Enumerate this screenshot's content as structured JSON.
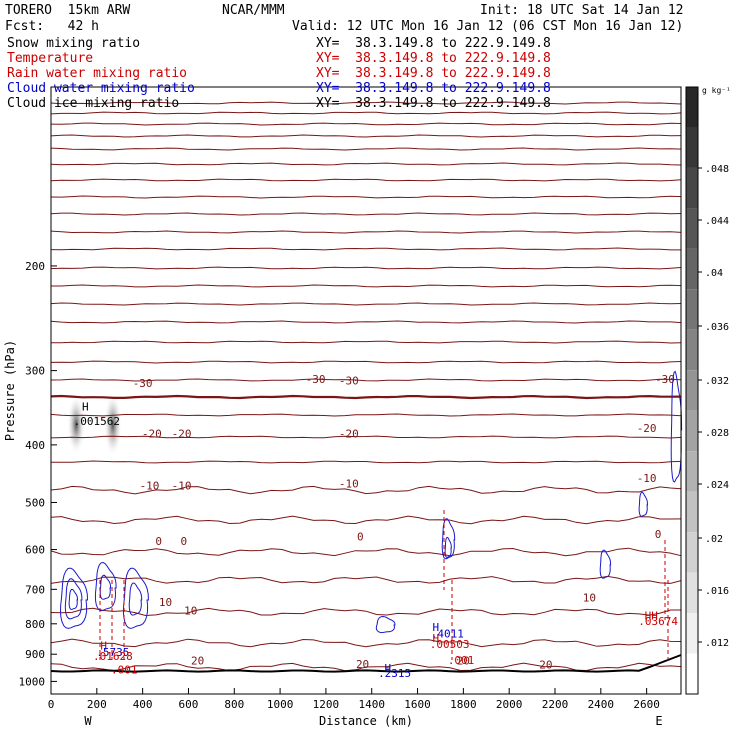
{
  "header": {
    "model": "TORERO  15km ARW",
    "org": "NCAR/MMM",
    "init": "Init: 18 UTC Sat 14 Jan 12",
    "fcst": "Fcst:   42 h",
    "valid": "Valid: 12 UTC Mon 16 Jan 12 (06 CST Mon 16 Jan 12)"
  },
  "legend": [
    {
      "label": "Snow mixing ratio",
      "xy": "XY=  38.3.149.8 to 222.9.149.8",
      "color": "#000000"
    },
    {
      "label": "Temperature",
      "xy": "XY=  38.3.149.8 to 222.9.149.8",
      "color": "#cc0000"
    },
    {
      "label": "Rain water mixing ratio",
      "xy": "XY=  38.3.149.8 to 222.9.149.8",
      "color": "#cc0000"
    },
    {
      "label": "Cloud water mixing ratio",
      "xy": "XY=  38.3.149.8 to 222.9.149.8",
      "color": "#0000cc"
    },
    {
      "label": "Cloud ice mixing ratio",
      "xy": "XY=  38.3.149.8 to 222.9.149.8",
      "color": "#000000"
    }
  ],
  "colorbar": {
    "unit": "g kg⁻¹",
    "ticks": [
      ".048",
      ".044",
      ".04",
      ".036",
      ".032",
      ".028",
      ".024",
      ".02",
      ".016",
      ".012"
    ]
  },
  "chart_data": {
    "type": "cross-section contour",
    "xlabel": "Distance (km)",
    "ylabel": "Pressure (hPa)",
    "x_ticks": [
      0,
      200,
      400,
      600,
      800,
      1000,
      1200,
      1400,
      1600,
      1800,
      2000,
      2200,
      2400,
      2600
    ],
    "y_ticks": [
      200,
      300,
      400,
      500,
      600,
      700,
      800,
      900,
      1000
    ],
    "xlim": [
      0,
      2750
    ],
    "ylim": [
      1050,
      100
    ],
    "y_scale": "log",
    "end_labels": {
      "left": "W",
      "right": "E"
    },
    "temperature_contours": [
      {
        "level": "-30",
        "labels": [
          {
            "x": 400,
            "p": 315
          },
          {
            "x": 1155,
            "p": 310
          },
          {
            "x": 1300,
            "p": 312
          },
          {
            "x": 2680,
            "p": 310
          }
        ]
      },
      {
        "level": "-20",
        "labels": [
          {
            "x": 440,
            "p": 383
          },
          {
            "x": 570,
            "p": 383
          },
          {
            "x": 1300,
            "p": 383
          },
          {
            "x": 2600,
            "p": 375
          }
        ]
      },
      {
        "level": "-10",
        "labels": [
          {
            "x": 430,
            "p": 468
          },
          {
            "x": 570,
            "p": 468
          },
          {
            "x": 1300,
            "p": 465
          },
          {
            "x": 2600,
            "p": 455
          }
        ]
      },
      {
        "level": "0",
        "labels": [
          {
            "x": 470,
            "p": 580
          },
          {
            "x": 580,
            "p": 580
          },
          {
            "x": 1350,
            "p": 570
          },
          {
            "x": 2650,
            "p": 565
          }
        ]
      },
      {
        "level": "10",
        "labels": [
          {
            "x": 500,
            "p": 735
          },
          {
            "x": 610,
            "p": 760
          },
          {
            "x": 2350,
            "p": 722
          }
        ]
      },
      {
        "level": "20",
        "labels": [
          {
            "x": 640,
            "p": 922
          },
          {
            "x": 1360,
            "p": 935
          },
          {
            "x": 1800,
            "p": 922
          },
          {
            "x": 2160,
            "p": 937
          }
        ]
      }
    ],
    "annotations": [
      {
        "text": "H",
        "x": 150,
        "p": 345,
        "color": "#000000"
      },
      {
        "text": ".001562",
        "x": 200,
        "p": 365,
        "color": "#000000"
      },
      {
        "text": "H",
        "x": 230,
        "p": 870,
        "color": "#cc0000"
      },
      {
        "text": ".5735",
        "x": 270,
        "p": 892,
        "color": "#0000cc"
      },
      {
        "text": ".01628",
        "x": 270,
        "p": 907,
        "color": "#cc0000"
      },
      {
        "text": ".001",
        "x": 320,
        "p": 955,
        "color": "#cc0000"
      },
      {
        "text": "H",
        "x": 1680,
        "p": 810,
        "color": "#0000cc"
      },
      {
        "text": ".4011",
        "x": 1730,
        "p": 830,
        "color": "#0000cc"
      },
      {
        "text": "H",
        "x": 1680,
        "p": 845,
        "color": "#cc0000"
      },
      {
        "text": ".00503",
        "x": 1740,
        "p": 865,
        "color": "#cc0000"
      },
      {
        "text": ".001",
        "x": 1790,
        "p": 920,
        "color": "#cc0000"
      },
      {
        "text": "H",
        "x": 1470,
        "p": 950,
        "color": "#0000cc"
      },
      {
        "text": ".2315",
        "x": 1500,
        "p": 968,
        "color": "#0000cc"
      },
      {
        "text": "HH",
        "x": 2620,
        "p": 775,
        "color": "#cc0000"
      },
      {
        "text": ".03674",
        "x": 2650,
        "p": 792,
        "color": "#cc0000"
      }
    ]
  }
}
